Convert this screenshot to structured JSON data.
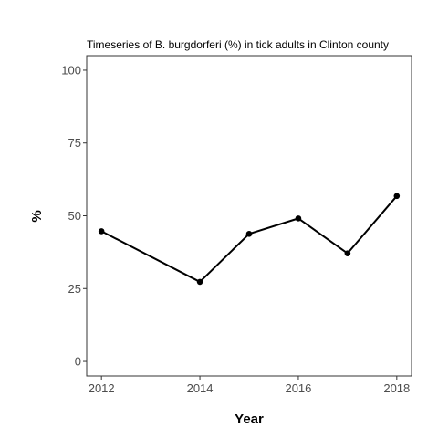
{
  "chart_data": {
    "type": "line",
    "title": "Timeseries of B. burgdorferi (%) in tick adults in Clinton county",
    "xlabel": "Year",
    "ylabel": "%",
    "x": [
      2012,
      2014,
      2015,
      2016,
      2017,
      2018
    ],
    "series": [
      {
        "values": [
          44.7,
          27.3,
          43.8,
          49.1,
          37.1,
          56.8
        ]
      }
    ],
    "x_ticks": [
      2012,
      2014,
      2016,
      2018
    ],
    "y_ticks": [
      0,
      25,
      50,
      75,
      100
    ],
    "xlim": [
      2011.7,
      2018.3
    ],
    "ylim": [
      -5,
      105
    ],
    "grid": false,
    "legend": "none",
    "line_color": "#000000",
    "panel_border_color": "#333333",
    "tick_label_color": "#4d4d4d"
  }
}
